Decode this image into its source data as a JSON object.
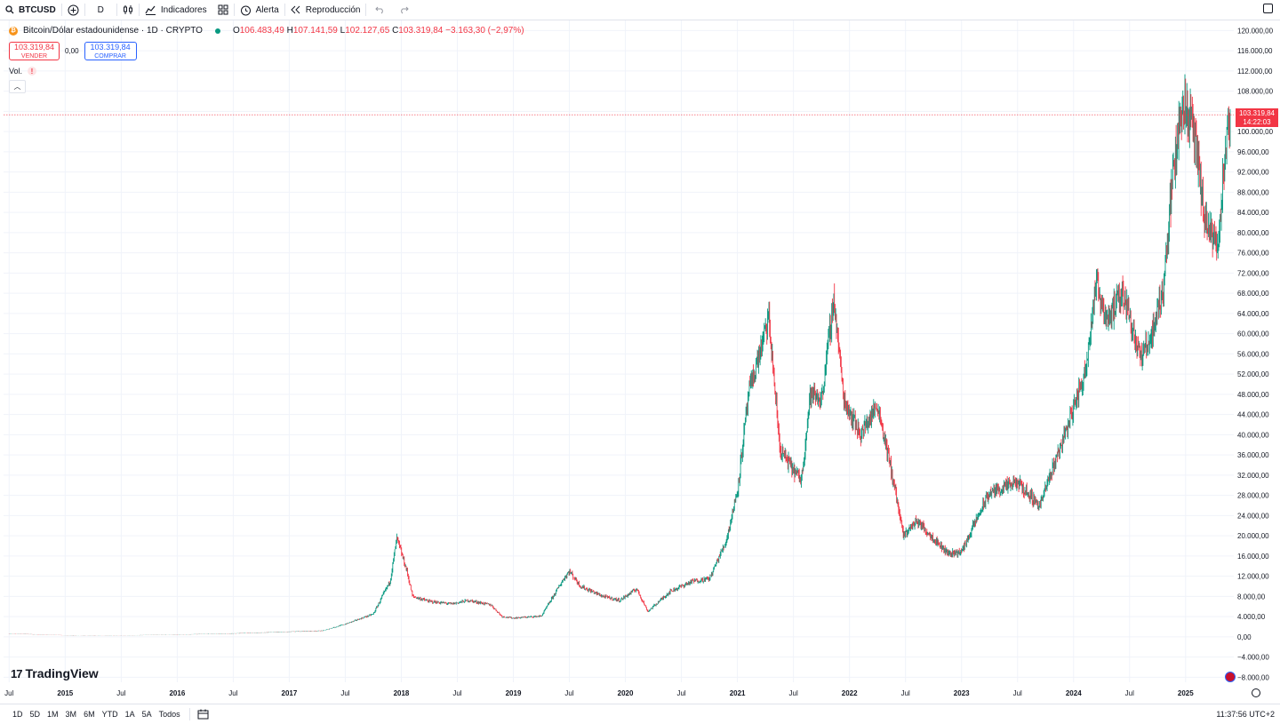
{
  "toolbar": {
    "symbol": "BTCUSD",
    "interval": "D",
    "indicators_label": "Indicadores",
    "alert_label": "Alerta",
    "replay_label": "Reproducción"
  },
  "legend": {
    "title": "Bitcoin/Dólar estadounidense · 1D · CRYPTO",
    "o_label": "O",
    "o_value": "106.483,49",
    "h_label": "H",
    "h_value": "107.141,59",
    "l_label": "L",
    "l_value": "102.127,65",
    "c_label": "C",
    "c_value": "103.319,84",
    "change": "−3.163,30 (−2,97%)"
  },
  "trade": {
    "sell_price": "103.319,84",
    "sell_label": "VENDER",
    "spread": "0,00",
    "buy_price": "103.319,84",
    "buy_label": "COMPRAR"
  },
  "volume_label": "Vol.",
  "last_price": {
    "value": "103.319,84",
    "countdown": "14:22:03"
  },
  "logo_text": "TradingView",
  "bottom": {
    "ranges": [
      "1D",
      "5D",
      "1M",
      "3M",
      "6M",
      "YTD",
      "1A",
      "5A",
      "Todos"
    ],
    "clock": "11:37:56 UTC+2"
  },
  "colors": {
    "up": "#089981",
    "down": "#f23645",
    "accent": "#2962ff"
  },
  "chart_data": {
    "type": "line",
    "title": "Bitcoin/Dólar estadounidense · 1D · CRYPTO",
    "xlabel": "",
    "ylabel": "",
    "y_range": [
      -9000,
      122000
    ],
    "y_ticks": [
      "120.000,00",
      "116.000,00",
      "112.000,00",
      "108.000,00",
      "104.000,00",
      "100.000,00",
      "96.000,00",
      "92.000,00",
      "88.000,00",
      "84.000,00",
      "80.000,00",
      "76.000,00",
      "72.000,00",
      "68.000,00",
      "64.000,00",
      "60.000,00",
      "56.000,00",
      "52.000,00",
      "48.000,00",
      "44.000,00",
      "40.000,00",
      "36.000,00",
      "32.000,00",
      "28.000,00",
      "24.000,00",
      "20.000,00",
      "16.000,00",
      "12.000,00",
      "8.000,00",
      "4.000,00",
      "0,00",
      "−4.000,00",
      "−8.000,00"
    ],
    "x_ticks": [
      {
        "label": "Jul",
        "t": 2014.5
      },
      {
        "label": "2015",
        "t": 2015.0
      },
      {
        "label": "Jul",
        "t": 2015.5
      },
      {
        "label": "2016",
        "t": 2016.0
      },
      {
        "label": "Jul",
        "t": 2016.5
      },
      {
        "label": "2017",
        "t": 2017.0
      },
      {
        "label": "Jul",
        "t": 2017.5
      },
      {
        "label": "2018",
        "t": 2018.0
      },
      {
        "label": "Jul",
        "t": 2018.5
      },
      {
        "label": "2019",
        "t": 2019.0
      },
      {
        "label": "Jul",
        "t": 2019.5
      },
      {
        "label": "2020",
        "t": 2020.0
      },
      {
        "label": "Jul",
        "t": 2020.5
      },
      {
        "label": "2021",
        "t": 2021.0
      },
      {
        "label": "Jul",
        "t": 2021.5
      },
      {
        "label": "2022",
        "t": 2022.0
      },
      {
        "label": "Jul",
        "t": 2022.5
      },
      {
        "label": "2023",
        "t": 2023.0
      },
      {
        "label": "Jul",
        "t": 2023.5
      },
      {
        "label": "2024",
        "t": 2024.0
      },
      {
        "label": "Jul",
        "t": 2024.5
      },
      {
        "label": "2025",
        "t": 2025.0
      }
    ],
    "last_value": 103319.84,
    "series": [
      {
        "points": [
          [
            2014.5,
            620
          ],
          [
            2015.0,
            300
          ],
          [
            2015.5,
            260
          ],
          [
            2016.0,
            430
          ],
          [
            2016.5,
            650
          ],
          [
            2017.0,
            1000
          ],
          [
            2017.3,
            1200
          ],
          [
            2017.5,
            2500
          ],
          [
            2017.75,
            4500
          ],
          [
            2017.9,
            11000
          ],
          [
            2017.96,
            19500
          ],
          [
            2018.05,
            13000
          ],
          [
            2018.1,
            8000
          ],
          [
            2018.25,
            7000
          ],
          [
            2018.45,
            6500
          ],
          [
            2018.6,
            7200
          ],
          [
            2018.8,
            6300
          ],
          [
            2018.9,
            4000
          ],
          [
            2019.0,
            3700
          ],
          [
            2019.25,
            4100
          ],
          [
            2019.45,
            11500
          ],
          [
            2019.5,
            13000
          ],
          [
            2019.6,
            10000
          ],
          [
            2019.8,
            8000
          ],
          [
            2019.95,
            7200
          ],
          [
            2020.1,
            9500
          ],
          [
            2020.2,
            5000
          ],
          [
            2020.4,
            9000
          ],
          [
            2020.6,
            11000
          ],
          [
            2020.75,
            11500
          ],
          [
            2020.9,
            19000
          ],
          [
            2021.0,
            29000
          ],
          [
            2021.1,
            48000
          ],
          [
            2021.28,
            63000
          ],
          [
            2021.38,
            37000
          ],
          [
            2021.5,
            33000
          ],
          [
            2021.57,
            31000
          ],
          [
            2021.65,
            48000
          ],
          [
            2021.75,
            47000
          ],
          [
            2021.86,
            67000
          ],
          [
            2021.95,
            47000
          ],
          [
            2022.1,
            40000
          ],
          [
            2022.25,
            46000
          ],
          [
            2022.4,
            30000
          ],
          [
            2022.48,
            20000
          ],
          [
            2022.6,
            23000
          ],
          [
            2022.75,
            19500
          ],
          [
            2022.88,
            16500
          ],
          [
            2023.0,
            16800
          ],
          [
            2023.15,
            24000
          ],
          [
            2023.25,
            28500
          ],
          [
            2023.5,
            30500
          ],
          [
            2023.7,
            26000
          ],
          [
            2023.83,
            34500
          ],
          [
            2023.95,
            42000
          ],
          [
            2024.1,
            52000
          ],
          [
            2024.2,
            70000
          ],
          [
            2024.3,
            63000
          ],
          [
            2024.45,
            68000
          ],
          [
            2024.6,
            55000
          ],
          [
            2024.7,
            60000
          ],
          [
            2024.8,
            69000
          ],
          [
            2024.88,
            90000
          ],
          [
            2024.97,
            106000
          ],
          [
            2025.05,
            102000
          ],
          [
            2025.1,
            96000
          ],
          [
            2025.17,
            82000
          ],
          [
            2025.28,
            77000
          ],
          [
            2025.35,
            94000
          ],
          [
            2025.4,
            103319.84
          ]
        ]
      }
    ]
  }
}
